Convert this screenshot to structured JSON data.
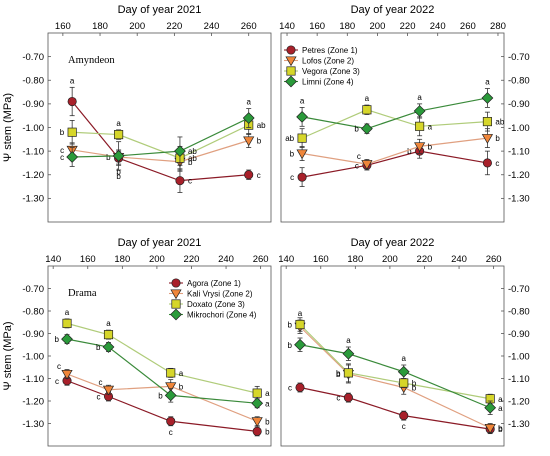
{
  "colors": {
    "zone1": "#a8202a",
    "zone2": "#f0863a",
    "zone3": "#d6d62a",
    "zone4": "#2a9a3a",
    "zone1_line": "#8b1a26",
    "zone2_line": "#e0a080",
    "zone3_line": "#b0cc7a",
    "zone4_line": "#3a8a3a"
  },
  "chart_data": [
    {
      "type": "line",
      "panel": "top-left",
      "site": "Amyndeon",
      "x_title": "Day of year 2021",
      "ylabel": "Ψ stem (MPa)",
      "xlim": [
        152,
        272
      ],
      "ylim": [
        -1.4,
        -0.6
      ],
      "xticks": [
        "160",
        "180",
        "200",
        "220",
        "240",
        "260"
      ],
      "yticks": [
        "-0.70",
        "-0.80",
        "-0.90",
        "-1.00",
        "-1.10",
        "-1.20",
        "-1.30"
      ],
      "legend": null,
      "series": [
        {
          "zone": "zone1",
          "marker": "circle",
          "points": [
            {
              "x": 165,
              "y": -0.89,
              "err": 0.06,
              "sig": "a",
              "sig_pos": "above"
            },
            {
              "x": 190,
              "y": -1.13,
              "err": 0.03,
              "sig": "b",
              "sig_pos": "below"
            },
            {
              "x": 223,
              "y": -1.225,
              "err": 0.05,
              "sig": "c",
              "sig_pos": "right"
            },
            {
              "x": 260,
              "y": -1.2,
              "err": 0.02,
              "sig": "c",
              "sig_pos": "right"
            }
          ]
        },
        {
          "zone": "zone2",
          "marker": "triangle",
          "points": [
            {
              "x": 165,
              "y": -1.095,
              "err": 0.03,
              "sig": "c",
              "sig_pos": "left"
            },
            {
              "x": 190,
              "y": -1.125,
              "err": 0.03,
              "sig": "b",
              "sig_pos": "left"
            },
            {
              "x": 223,
              "y": -1.145,
              "err": 0.04,
              "sig": "b",
              "sig_pos": "right"
            },
            {
              "x": 260,
              "y": -1.055,
              "err": 0.03,
              "sig": "b",
              "sig_pos": "right"
            }
          ]
        },
        {
          "zone": "zone3",
          "marker": "square",
          "points": [
            {
              "x": 165,
              "y": -1.02,
              "err": 0.05,
              "sig": "b",
              "sig_pos": "left"
            },
            {
              "x": 190,
              "y": -1.03,
              "err": 0.02,
              "sig": "a",
              "sig_pos": "above"
            },
            {
              "x": 223,
              "y": -1.13,
              "err": 0.05,
              "sig": "ab",
              "sig_pos": "right"
            },
            {
              "x": 260,
              "y": -0.99,
              "err": 0.04,
              "sig": "ab",
              "sig_pos": "right"
            }
          ]
        },
        {
          "zone": "zone4",
          "marker": "diamond",
          "points": [
            {
              "x": 165,
              "y": -1.125,
              "err": 0.04,
              "sig": "c",
              "sig_pos": "left"
            },
            {
              "x": 190,
              "y": -1.12,
              "err": 0.06,
              "sig": "b",
              "sig_pos": "below"
            },
            {
              "x": 223,
              "y": -1.1,
              "err": 0.06,
              "sig": "ab",
              "sig_pos": "right"
            },
            {
              "x": 260,
              "y": -0.96,
              "err": 0.04,
              "sig": "a",
              "sig_pos": "above"
            }
          ]
        }
      ]
    },
    {
      "type": "line",
      "panel": "top-right",
      "site": "",
      "x_title": "Day of year 2022",
      "ylabel": "",
      "xlim": [
        136,
        284
      ],
      "ylim": [
        -1.4,
        -0.6
      ],
      "xticks": [
        "140",
        "160",
        "180",
        "200",
        "220",
        "240",
        "260",
        "280"
      ],
      "yticks": [
        "-0.70",
        "-0.80",
        "-0.90",
        "-1.00",
        "-1.10",
        "-1.20",
        "-1.30"
      ],
      "legend": {
        "position": "top-left",
        "entries": [
          {
            "zone": "zone1",
            "marker": "circle",
            "label": "Petres (Zone 1)"
          },
          {
            "zone": "zone2",
            "marker": "triangle",
            "label": "Lofos (Zone 2)"
          },
          {
            "zone": "zone3",
            "marker": "square",
            "label": "Vegora (Zone 3)"
          },
          {
            "zone": "zone4",
            "marker": "diamond",
            "label": "Limni (Zone 4)"
          }
        ]
      },
      "series": [
        {
          "zone": "zone1",
          "marker": "circle",
          "points": [
            {
              "x": 150,
              "y": -1.21,
              "err": 0.04,
              "sig": "c",
              "sig_pos": "left"
            },
            {
              "x": 193,
              "y": -1.16,
              "err": 0.02,
              "sig": "c",
              "sig_pos": "left"
            },
            {
              "x": 228,
              "y": -1.1,
              "err": 0.03,
              "sig": "b",
              "sig_pos": "left"
            },
            {
              "x": 273,
              "y": -1.15,
              "err": 0.05,
              "sig": "c",
              "sig_pos": "right"
            }
          ]
        },
        {
          "zone": "zone2",
          "marker": "triangle",
          "points": [
            {
              "x": 150,
              "y": -1.11,
              "err": 0.03,
              "sig": "b",
              "sig_pos": "left"
            },
            {
              "x": 193,
              "y": -1.155,
              "err": 0.02,
              "sig": "c",
              "sig_pos": "above-left"
            },
            {
              "x": 228,
              "y": -1.08,
              "err": 0.03,
              "sig": "b",
              "sig_pos": "right"
            },
            {
              "x": 273,
              "y": -1.045,
              "err": 0.04,
              "sig": "b",
              "sig_pos": "right"
            }
          ]
        },
        {
          "zone": "zone3",
          "marker": "square",
          "points": [
            {
              "x": 150,
              "y": -1.045,
              "err": 0.04,
              "sig": "ab",
              "sig_pos": "left"
            },
            {
              "x": 193,
              "y": -0.925,
              "err": 0.02,
              "sig": "a",
              "sig_pos": "above"
            },
            {
              "x": 228,
              "y": -0.995,
              "err": 0.04,
              "sig": "a",
              "sig_pos": "right"
            },
            {
              "x": 273,
              "y": -0.975,
              "err": 0.04,
              "sig": "ab",
              "sig_pos": "right"
            }
          ]
        },
        {
          "zone": "zone4",
          "marker": "diamond",
          "points": [
            {
              "x": 150,
              "y": -0.955,
              "err": 0.04,
              "sig": "a",
              "sig_pos": "above"
            },
            {
              "x": 193,
              "y": -1.005,
              "err": 0.02,
              "sig": "b",
              "sig_pos": "left"
            },
            {
              "x": 228,
              "y": -0.93,
              "err": 0.03,
              "sig": "a",
              "sig_pos": "above"
            },
            {
              "x": 273,
              "y": -0.875,
              "err": 0.04,
              "sig": "a",
              "sig_pos": "above"
            }
          ]
        }
      ]
    },
    {
      "type": "line",
      "panel": "bottom-left",
      "site": "Drama",
      "x_title": "Day of year 2021",
      "ylabel": "Ψ stem (MPa)",
      "xlim": [
        137,
        266
      ],
      "ylim": [
        -1.4,
        -0.6
      ],
      "xticks": [
        "140",
        "160",
        "180",
        "200",
        "220",
        "240",
        "260"
      ],
      "yticks": [
        "-0.70",
        "-0.80",
        "-0.90",
        "-1.00",
        "-1.10",
        "-1.20",
        "-1.30"
      ],
      "legend": {
        "position": "top-right",
        "entries": [
          {
            "zone": "zone1",
            "marker": "circle",
            "label": "Agora (Zone 1)"
          },
          {
            "zone": "zone2",
            "marker": "triangle",
            "label": "Kali Vrysi (Zone 2)"
          },
          {
            "zone": "zone3",
            "marker": "square",
            "label": "Doxato (Zone 3)"
          },
          {
            "zone": "zone4",
            "marker": "diamond",
            "label": "Mikrochori (Zone 4)"
          }
        ]
      },
      "series": [
        {
          "zone": "zone1",
          "marker": "circle",
          "points": [
            {
              "x": 148,
              "y": -1.11,
              "err": 0.02,
              "sig": "c",
              "sig_pos": "left"
            },
            {
              "x": 172,
              "y": -1.18,
              "err": 0.02,
              "sig": "c",
              "sig_pos": "left"
            },
            {
              "x": 208,
              "y": -1.29,
              "err": 0.02,
              "sig": "c",
              "sig_pos": "below"
            },
            {
              "x": 258,
              "y": -1.335,
              "err": 0.02,
              "sig": "b",
              "sig_pos": "right"
            }
          ]
        },
        {
          "zone": "zone2",
          "marker": "triangle",
          "points": [
            {
              "x": 148,
              "y": -1.08,
              "err": 0.02,
              "sig": "c",
              "sig_pos": "above-left"
            },
            {
              "x": 172,
              "y": -1.15,
              "err": 0.02,
              "sig": "c",
              "sig_pos": "above-left"
            },
            {
              "x": 208,
              "y": -1.135,
              "err": 0.03,
              "sig": "b",
              "sig_pos": "right"
            },
            {
              "x": 258,
              "y": -1.29,
              "err": 0.02,
              "sig": "b",
              "sig_pos": "right"
            }
          ]
        },
        {
          "zone": "zone3",
          "marker": "square",
          "points": [
            {
              "x": 148,
              "y": -0.855,
              "err": 0.02,
              "sig": "a",
              "sig_pos": "above"
            },
            {
              "x": 172,
              "y": -0.905,
              "err": 0.02,
              "sig": "a",
              "sig_pos": "above"
            },
            {
              "x": 208,
              "y": -1.075,
              "err": 0.02,
              "sig": "a",
              "sig_pos": "right"
            },
            {
              "x": 258,
              "y": -1.165,
              "err": 0.03,
              "sig": "a",
              "sig_pos": "right"
            }
          ]
        },
        {
          "zone": "zone4",
          "marker": "diamond",
          "points": [
            {
              "x": 148,
              "y": -0.925,
              "err": 0.02,
              "sig": "b",
              "sig_pos": "left"
            },
            {
              "x": 172,
              "y": -0.96,
              "err": 0.02,
              "sig": "b",
              "sig_pos": "left"
            },
            {
              "x": 208,
              "y": -1.175,
              "err": 0.03,
              "sig": "b",
              "sig_pos": "left"
            },
            {
              "x": 258,
              "y": -1.21,
              "err": 0.02,
              "sig": "a",
              "sig_pos": "right"
            }
          ]
        }
      ]
    },
    {
      "type": "line",
      "panel": "bottom-right",
      "site": "",
      "x_title": "Day of year 2022",
      "ylabel": "",
      "xlim": [
        137,
        266
      ],
      "ylim": [
        -1.4,
        -0.6
      ],
      "xticks": [
        "140",
        "160",
        "180",
        "200",
        "220",
        "240",
        "260"
      ],
      "yticks": [
        "-0.70",
        "-0.80",
        "-0.90",
        "-1.00",
        "-1.10",
        "-1.20",
        "-1.30"
      ],
      "legend": null,
      "series": [
        {
          "zone": "zone1",
          "marker": "circle",
          "points": [
            {
              "x": 148,
              "y": -1.14,
              "err": 0.02,
              "sig": "c",
              "sig_pos": "left"
            },
            {
              "x": 176,
              "y": -1.185,
              "err": 0.02,
              "sig": "c",
              "sig_pos": "left"
            },
            {
              "x": 208,
              "y": -1.265,
              "err": 0.02,
              "sig": "c",
              "sig_pos": "below"
            },
            {
              "x": 258,
              "y": -1.325,
              "err": 0.02,
              "sig": "b",
              "sig_pos": "right"
            }
          ]
        },
        {
          "zone": "zone2",
          "marker": "triangle",
          "points": [
            {
              "x": 148,
              "y": -0.87,
              "err": 0.03,
              "sig": "a",
              "sig_pos": "above"
            },
            {
              "x": 176,
              "y": -1.08,
              "err": 0.04,
              "sig": "b",
              "sig_pos": "left"
            },
            {
              "x": 208,
              "y": -1.14,
              "err": 0.03,
              "sig": "b",
              "sig_pos": "right"
            },
            {
              "x": 258,
              "y": -1.32,
              "err": 0.02,
              "sig": "b",
              "sig_pos": "right"
            }
          ]
        },
        {
          "zone": "zone3",
          "marker": "square",
          "points": [
            {
              "x": 148,
              "y": -0.86,
              "err": 0.03,
              "sig": "b",
              "sig_pos": "left"
            },
            {
              "x": 176,
              "y": -1.075,
              "err": 0.04,
              "sig": "b",
              "sig_pos": "left"
            },
            {
              "x": 208,
              "y": -1.12,
              "err": 0.02,
              "sig": "b",
              "sig_pos": "right"
            },
            {
              "x": 258,
              "y": -1.19,
              "err": 0.02,
              "sig": "a",
              "sig_pos": "right"
            }
          ]
        },
        {
          "zone": "zone4",
          "marker": "diamond",
          "points": [
            {
              "x": 148,
              "y": -0.95,
              "err": 0.03,
              "sig": "b",
              "sig_pos": "left"
            },
            {
              "x": 176,
              "y": -0.99,
              "err": 0.03,
              "sig": "a",
              "sig_pos": "above"
            },
            {
              "x": 208,
              "y": -1.07,
              "err": 0.03,
              "sig": "a",
              "sig_pos": "above"
            },
            {
              "x": 258,
              "y": -1.23,
              "err": 0.03,
              "sig": "a",
              "sig_pos": "right"
            }
          ]
        }
      ]
    }
  ]
}
